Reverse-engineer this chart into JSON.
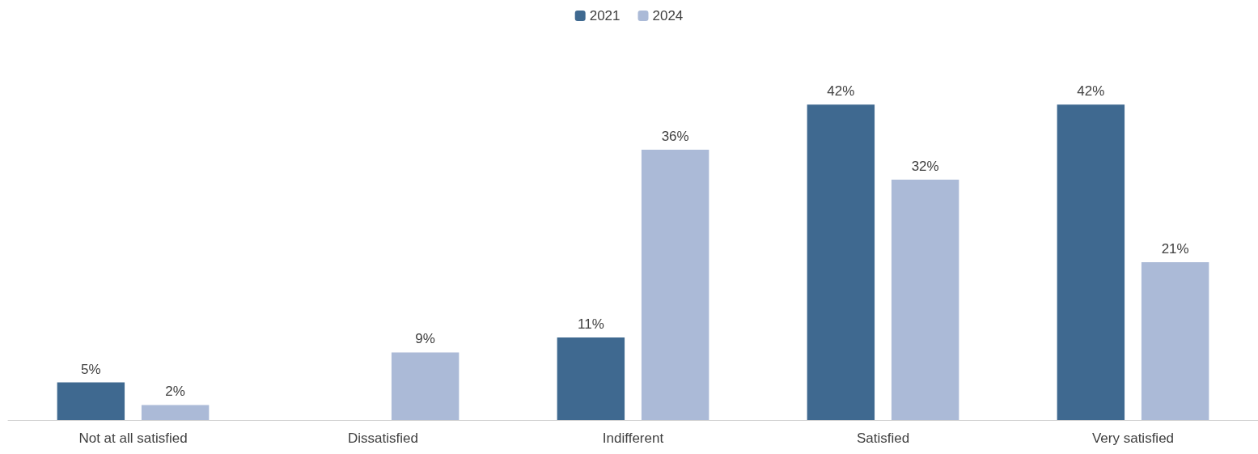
{
  "chart_data": {
    "type": "bar",
    "categories": [
      "Not at all satisfied",
      "Dissatisfied",
      "Indifferent",
      "Satisfied",
      "Very satisfied"
    ],
    "series": [
      {
        "name": "2021",
        "color": "#3f6990",
        "values": [
          5,
          null,
          11,
          42,
          42
        ],
        "value_labels": [
          "5%",
          null,
          "11%",
          "42%",
          "42%"
        ]
      },
      {
        "name": "2024",
        "color": "#abbad7",
        "values": [
          2,
          9,
          36,
          32,
          21
        ],
        "value_labels": [
          "2%",
          "9%",
          "36%",
          "32%",
          "21%"
        ]
      }
    ],
    "legend": "top"
  }
}
